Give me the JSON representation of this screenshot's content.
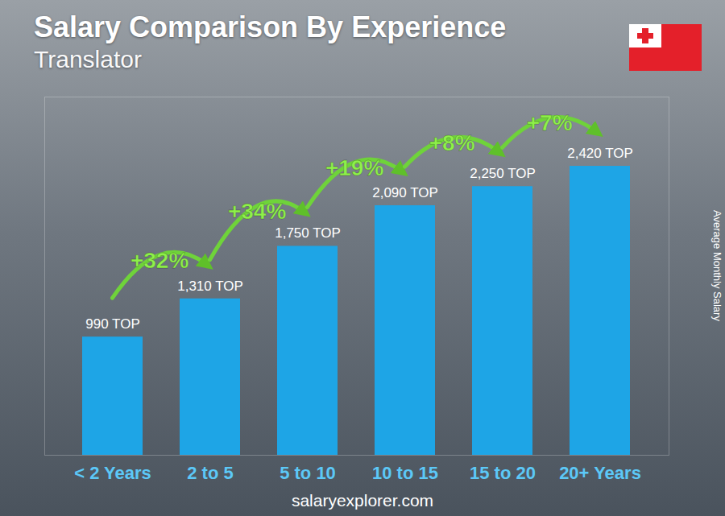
{
  "chart_data": {
    "type": "bar",
    "title": "Salary Comparison By Experience",
    "subtitle": "Translator",
    "categories": [
      "< 2 Years",
      "2 to 5",
      "5 to 10",
      "10 to 15",
      "15 to 20",
      "20+ Years"
    ],
    "values": [
      990,
      1310,
      1750,
      2090,
      2250,
      2420
    ],
    "value_labels": [
      "990 TOP",
      "1,310 TOP",
      "1,750 TOP",
      "2,090 TOP",
      "2,250 TOP",
      "2,420 TOP"
    ],
    "data_labels": true,
    "color": "#1ea5e6",
    "ylabel": "Average Monthly Salary",
    "ylim": [
      0,
      3000
    ],
    "yticks": [],
    "tick_labels": "x",
    "annotations": [
      "+32%",
      "+34%",
      "+19%",
      "+8%",
      "+7%"
    ],
    "source": "salaryexplorer.com"
  }
}
